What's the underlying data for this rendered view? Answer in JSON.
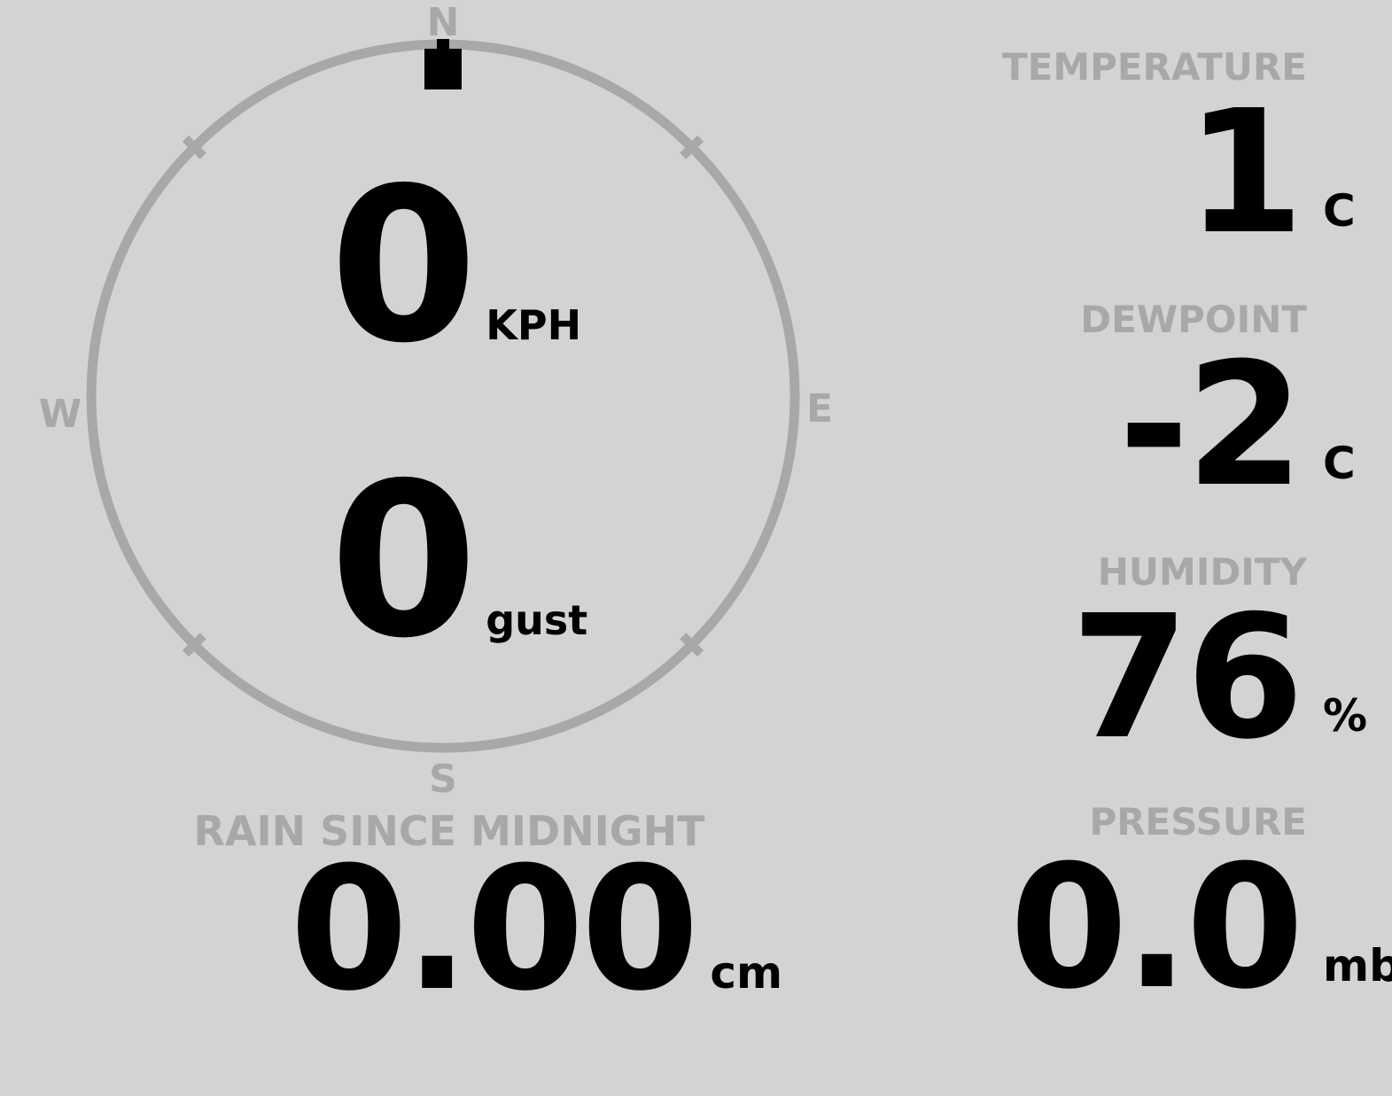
{
  "theme": {
    "background": "#d3d3d3",
    "muted": "#a8a8a8",
    "foreground": "#000000"
  },
  "compass": {
    "cardinals": {
      "north": "N",
      "east": "E",
      "south": "S",
      "west": "W"
    },
    "wind_direction_deg": 0,
    "speed": {
      "value": "0",
      "unit": "KPH"
    },
    "gust": {
      "value": "0",
      "unit": "gust"
    }
  },
  "rain": {
    "label": "RAIN SINCE MIDNIGHT",
    "value": "0.00",
    "unit": "cm"
  },
  "readings": [
    {
      "id": "temperature",
      "label": "TEMPERATURE",
      "value": "1",
      "unit": "C"
    },
    {
      "id": "dewpoint",
      "label": "DEWPOINT",
      "value": "-2",
      "unit": "C"
    },
    {
      "id": "humidity",
      "label": "HUMIDITY",
      "value": "76",
      "unit": "%"
    },
    {
      "id": "pressure",
      "label": "PRESSURE",
      "value": "0.0",
      "unit": "mb"
    }
  ]
}
